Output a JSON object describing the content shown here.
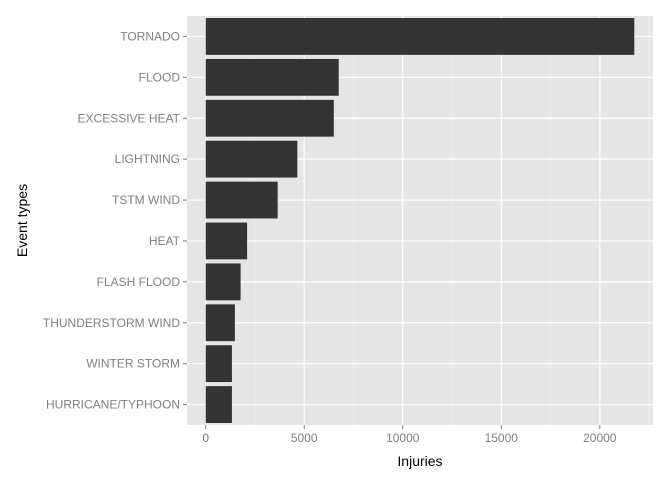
{
  "chart_data": {
    "type": "bar",
    "orientation": "horizontal",
    "xlabel": "Injuries",
    "ylabel": "Event types",
    "categories": [
      "TORNADO",
      "FLOOD",
      "EXCESSIVE HEAT",
      "LIGHTNING",
      "TSTM WIND",
      "HEAT",
      "FLASH FLOOD",
      "THUNDERSTORM WIND",
      "WINTER STORM",
      "HURRICANE/TYPHOON"
    ],
    "values": [
      21750,
      6750,
      6500,
      4650,
      3650,
      2100,
      1770,
      1480,
      1330,
      1330
    ],
    "xlim": [
      -950,
      22700
    ],
    "xticks": [
      0,
      5000,
      10000,
      15000,
      20000
    ],
    "xtick_labels": [
      "0",
      "5000",
      "10000",
      "15000",
      "20000"
    ],
    "grid": true,
    "colors": {
      "panel": "#e5e5e5",
      "grid_major": "#ffffff",
      "grid_minor": "#f2f2f2",
      "bar": "#333333",
      "tick": "#7f7f7f"
    }
  }
}
